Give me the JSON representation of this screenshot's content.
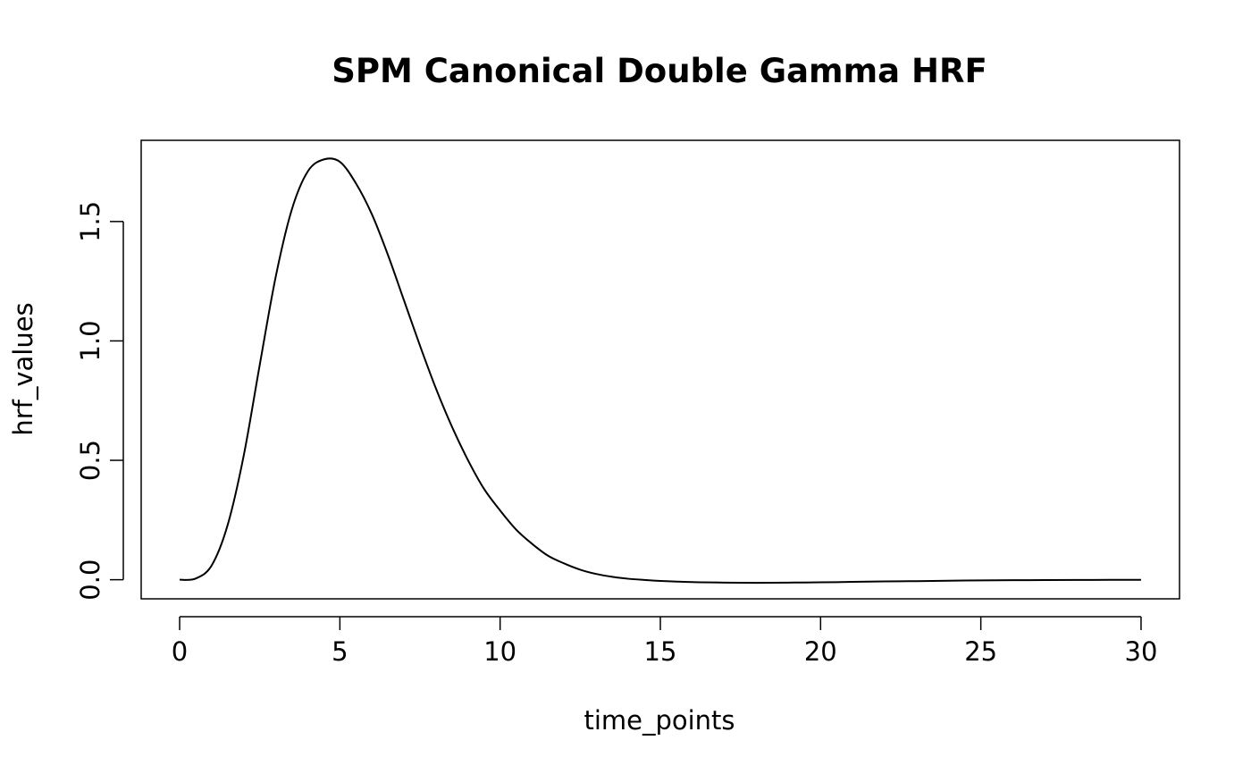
{
  "chart_data": {
    "type": "line",
    "title": "SPM Canonical Double Gamma HRF",
    "xlabel": "time_points",
    "ylabel": "hrf_values",
    "xlim": [
      -1.2,
      31.2
    ],
    "ylim": [
      -0.08,
      1.84
    ],
    "x_ticks": [
      0,
      5,
      10,
      15,
      20,
      25,
      30
    ],
    "x_tick_labels": [
      "0",
      "5",
      "10",
      "15",
      "20",
      "25",
      "30"
    ],
    "y_ticks": [
      0.0,
      0.5,
      1.0,
      1.5
    ],
    "y_tick_labels": [
      "0.0",
      "0.5",
      "1.0",
      "1.5"
    ],
    "grid": false,
    "legend": "none",
    "line_color": "#000000",
    "series": [
      {
        "x": [
          0,
          0.5,
          1,
          1.5,
          2,
          2.5,
          3,
          3.5,
          4,
          4.5,
          5,
          5.5,
          6,
          6.5,
          7,
          7.5,
          8,
          8.5,
          9,
          9.5,
          10,
          10.5,
          11,
          11.5,
          12,
          12.5,
          13,
          13.5,
          14,
          14.5,
          15,
          16,
          17,
          18,
          19,
          20,
          21,
          22,
          23,
          24,
          25,
          26,
          27,
          28,
          29,
          30
        ],
        "y": [
          0.0,
          0.005,
          0.06,
          0.23,
          0.52,
          0.9,
          1.27,
          1.55,
          1.71,
          1.76,
          1.75,
          1.66,
          1.53,
          1.36,
          1.17,
          0.98,
          0.8,
          0.64,
          0.5,
          0.38,
          0.29,
          0.21,
          0.15,
          0.1,
          0.068,
          0.042,
          0.024,
          0.012,
          0.004,
          -0.001,
          -0.005,
          -0.01,
          -0.012,
          -0.013,
          -0.012,
          -0.011,
          -0.009,
          -0.007,
          -0.006,
          -0.004,
          -0.003,
          -0.002,
          -0.0015,
          -0.001,
          -0.0005,
          -0.0003
        ]
      }
    ]
  }
}
